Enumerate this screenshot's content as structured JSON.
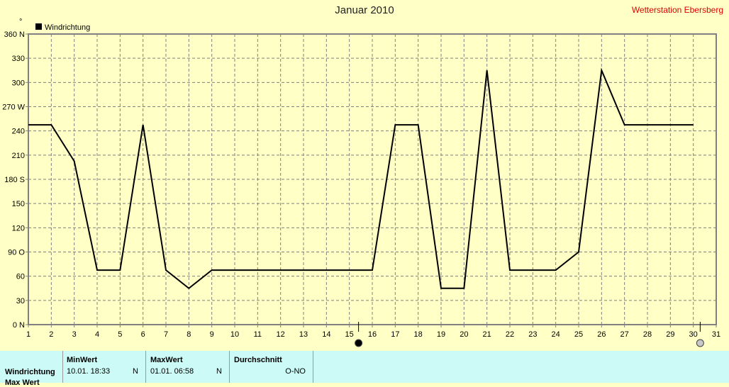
{
  "header": {
    "title": "Januar 2010",
    "station": "Wetterstation Ebersberg"
  },
  "chart_data": {
    "type": "line",
    "title": "Januar 2010",
    "ylabel": "°",
    "legend": {
      "entries": [
        "Windrichtung"
      ],
      "placement": "top-left"
    },
    "grid": true,
    "xlim": [
      1,
      31
    ],
    "ylim": [
      0,
      360
    ],
    "x_ticks": [
      1,
      2,
      3,
      4,
      5,
      6,
      7,
      8,
      9,
      10,
      11,
      12,
      13,
      14,
      15,
      16,
      17,
      18,
      19,
      20,
      21,
      22,
      23,
      24,
      25,
      26,
      27,
      28,
      29,
      30,
      31
    ],
    "y_ticks": [
      {
        "v": 0,
        "label": "0  N"
      },
      {
        "v": 30,
        "label": "30"
      },
      {
        "v": 60,
        "label": "60"
      },
      {
        "v": 90,
        "label": "90  O"
      },
      {
        "v": 120,
        "label": "120"
      },
      {
        "v": 150,
        "label": "150"
      },
      {
        "v": 180,
        "label": "180 S"
      },
      {
        "v": 210,
        "label": "210"
      },
      {
        "v": 240,
        "label": "240"
      },
      {
        "v": 270,
        "label": "270 W"
      },
      {
        "v": 300,
        "label": "300"
      },
      {
        "v": 330,
        "label": "330"
      },
      {
        "v": 360,
        "label": "360 N"
      }
    ],
    "series": [
      {
        "name": "Windrichtung",
        "color": "#000000",
        "x": [
          1,
          2,
          3,
          4,
          5,
          6,
          7,
          8,
          9,
          10,
          11,
          12,
          13,
          14,
          15,
          16,
          17,
          18,
          19,
          20,
          21,
          22,
          23,
          24,
          25,
          26,
          27,
          28,
          29,
          30
        ],
        "values": [
          247.5,
          247.5,
          202.5,
          67.5,
          67.5,
          247.5,
          67.5,
          45,
          67.5,
          67.5,
          67.5,
          67.5,
          67.5,
          67.5,
          67.5,
          67.5,
          247.5,
          247.5,
          45,
          45,
          315,
          67.5,
          67.5,
          67.5,
          90,
          315,
          247.5,
          247.5,
          247.5,
          247.5
        ]
      }
    ],
    "range_markers": [
      15.4,
      30.3
    ]
  },
  "stats": {
    "row_label": "Windrichtung",
    "row_label_2": "Max Wert",
    "min": {
      "header": "MinWert",
      "value": "10.01.  18:33",
      "unit": "N"
    },
    "max": {
      "header": "MaxWert",
      "value": "01.01.  06:58",
      "unit": "N"
    },
    "avg": {
      "header": "Durchschnitt",
      "value": "O-NO"
    }
  }
}
